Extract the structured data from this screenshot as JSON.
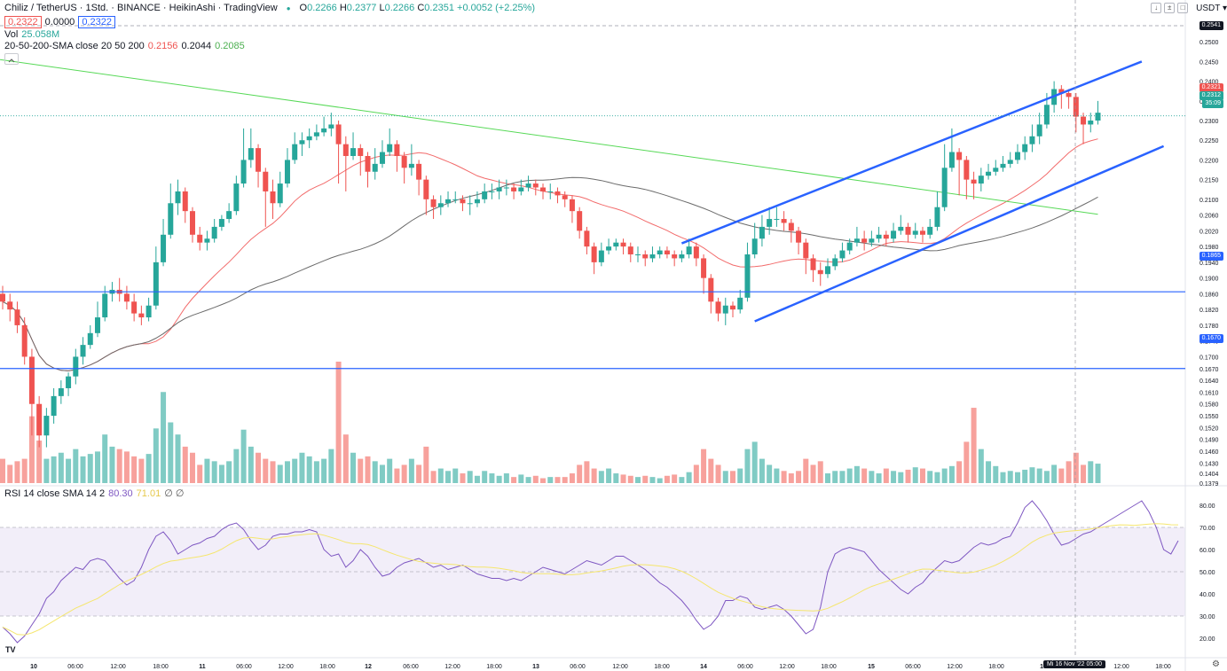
{
  "header": {
    "symbol": "Chiliz / TetherUS · 1Std. · BINANCE · HeikinAshi · TradingView",
    "ohlc": [
      {
        "k": "O",
        "v": "0.2266"
      },
      {
        "k": "H",
        "v": "0.2377"
      },
      {
        "k": "L",
        "v": "0.2266"
      },
      {
        "k": "C",
        "v": "0.2351"
      }
    ],
    "change": "+0.0052 (+2.25%)",
    "bid": "0.2322",
    "spread": "0.0000",
    "ask": "0.2322",
    "vol_label": "Vol",
    "vol_value": "25.058M",
    "sma_label": "20-50-200-SMA close 20 50 200",
    "sma20": "0.2156",
    "sma50": "0.2044",
    "sma200": "0.2085",
    "currency": "USDT",
    "buttons": [
      "↓",
      "±",
      "□"
    ]
  },
  "rsi": {
    "label": "RSI 14 close SMA 14 2",
    "value": "80.30",
    "sma": "71.01",
    "extra": "∅ ∅"
  },
  "colors": {
    "up": "#26a69a",
    "down": "#ef5350",
    "up_vol": "#80cbc4",
    "down_vol": "#f7a19c",
    "sma20": "#f26b6b",
    "sma50": "#6b6b6b",
    "sma200": "#57d957",
    "blue": "#2962ff",
    "rsi": "#7e57c2",
    "rsi_sma": "#f5e66e"
  },
  "price_axis": {
    "ticks": [
      "0.2500",
      "0.2450",
      "0.2400",
      "0.2350",
      "0.2300",
      "0.2250",
      "0.2200",
      "0.2150",
      "0.2100",
      "0.2060",
      "0.2020",
      "0.1980",
      "0.1940",
      "0.1900",
      "0.1860",
      "0.1820",
      "0.1780",
      "0.1740",
      "0.1700",
      "0.1670",
      "0.1640",
      "0.1610",
      "0.1580",
      "0.1550",
      "0.1520",
      "0.1490",
      "0.1460",
      "0.1430",
      "0.1404",
      "0.1379"
    ],
    "crosshair_tag": "0.2541",
    "price_tags": [
      "0.2321",
      "0.2312",
      "35:09"
    ],
    "hline_tags": [
      "0.1865",
      "0.1670"
    ]
  },
  "rsi_axis": {
    "ticks": [
      "80.00",
      "70.00",
      "60.00",
      "50.00",
      "40.00",
      "30.00",
      "20.00"
    ]
  },
  "time_axis": {
    "labels": [
      "10",
      "06:00",
      "12:00",
      "18:00",
      "11",
      "06:00",
      "12:00",
      "18:00",
      "12",
      "06:00",
      "12:00",
      "18:00",
      "13",
      "06:00",
      "12:00",
      "18:00",
      "14",
      "06:00",
      "12:00",
      "18:00",
      "15",
      "06:00",
      "12:00",
      "18:00",
      "16",
      "12:00",
      "18:00"
    ],
    "crosshair_label": "Mi 16 Nov '22  05:00"
  },
  "chart_data": {
    "type": "candlestick",
    "symbol": "CHZUSDT",
    "price_axis_range": [
      0.1379,
      0.2541
    ],
    "horizontal_levels": [
      0.1865,
      0.167
    ],
    "channel": {
      "upper": [
        [
          0.1988,
          0.245
        ]
      ],
      "lower": [
        [
          0.179,
          0.2235
        ]
      ]
    },
    "candles": [
      [
        0.186,
        0.184,
        0.188,
        0.182
      ],
      [
        0.184,
        0.182,
        0.186,
        0.179
      ],
      [
        0.182,
        0.178,
        0.184,
        0.176
      ],
      [
        0.178,
        0.17,
        0.18,
        0.168
      ],
      [
        0.17,
        0.158,
        0.172,
        0.15
      ],
      [
        0.158,
        0.15,
        0.16,
        0.147
      ],
      [
        0.15,
        0.155,
        0.157,
        0.147
      ],
      [
        0.155,
        0.16,
        0.162,
        0.153
      ],
      [
        0.16,
        0.162,
        0.164,
        0.158
      ],
      [
        0.162,
        0.165,
        0.166,
        0.16
      ],
      [
        0.165,
        0.17,
        0.172,
        0.163
      ],
      [
        0.17,
        0.173,
        0.175,
        0.168
      ],
      [
        0.173,
        0.176,
        0.178,
        0.172
      ],
      [
        0.176,
        0.18,
        0.184,
        0.175
      ],
      [
        0.18,
        0.186,
        0.188,
        0.179
      ],
      [
        0.186,
        0.187,
        0.189,
        0.184
      ],
      [
        0.187,
        0.186,
        0.19,
        0.184
      ],
      [
        0.186,
        0.184,
        0.188,
        0.182
      ],
      [
        0.184,
        0.181,
        0.186,
        0.179
      ],
      [
        0.181,
        0.18,
        0.183,
        0.178
      ],
      [
        0.18,
        0.183,
        0.185,
        0.179
      ],
      [
        0.183,
        0.194,
        0.198,
        0.182
      ],
      [
        0.194,
        0.201,
        0.205,
        0.193
      ],
      [
        0.201,
        0.209,
        0.214,
        0.2
      ],
      [
        0.209,
        0.212,
        0.215,
        0.206
      ],
      [
        0.212,
        0.207,
        0.213,
        0.204
      ],
      [
        0.207,
        0.201,
        0.208,
        0.199
      ],
      [
        0.201,
        0.199,
        0.203,
        0.197
      ],
      [
        0.199,
        0.2,
        0.202,
        0.197
      ],
      [
        0.2,
        0.203,
        0.205,
        0.199
      ],
      [
        0.203,
        0.205,
        0.206,
        0.202
      ],
      [
        0.205,
        0.207,
        0.209,
        0.204
      ],
      [
        0.207,
        0.214,
        0.216,
        0.206
      ],
      [
        0.214,
        0.22,
        0.228,
        0.213
      ],
      [
        0.22,
        0.223,
        0.228,
        0.218
      ],
      [
        0.223,
        0.217,
        0.224,
        0.213
      ],
      [
        0.217,
        0.212,
        0.218,
        0.203
      ],
      [
        0.212,
        0.209,
        0.215,
        0.205
      ],
      [
        0.209,
        0.214,
        0.217,
        0.208
      ],
      [
        0.214,
        0.22,
        0.223,
        0.213
      ],
      [
        0.22,
        0.224,
        0.227,
        0.219
      ],
      [
        0.224,
        0.225,
        0.227,
        0.221
      ],
      [
        0.225,
        0.226,
        0.228,
        0.223
      ],
      [
        0.226,
        0.227,
        0.229,
        0.225
      ],
      [
        0.227,
        0.228,
        0.231,
        0.226
      ],
      [
        0.228,
        0.229,
        0.232,
        0.226
      ],
      [
        0.229,
        0.224,
        0.23,
        0.214
      ],
      [
        0.224,
        0.221,
        0.226,
        0.212
      ],
      [
        0.221,
        0.223,
        0.227,
        0.22
      ],
      [
        0.223,
        0.221,
        0.224,
        0.216
      ],
      [
        0.221,
        0.217,
        0.222,
        0.213
      ],
      [
        0.217,
        0.219,
        0.223,
        0.215
      ],
      [
        0.219,
        0.222,
        0.225,
        0.218
      ],
      [
        0.222,
        0.224,
        0.228,
        0.221
      ],
      [
        0.224,
        0.221,
        0.225,
        0.217
      ],
      [
        0.221,
        0.218,
        0.222,
        0.214
      ],
      [
        0.218,
        0.219,
        0.224,
        0.216
      ],
      [
        0.219,
        0.215,
        0.22,
        0.211
      ],
      [
        0.215,
        0.21,
        0.216,
        0.206
      ],
      [
        0.21,
        0.208,
        0.211,
        0.205
      ],
      [
        0.208,
        0.209,
        0.211,
        0.206
      ],
      [
        0.209,
        0.21,
        0.212,
        0.208
      ],
      [
        0.21,
        0.21,
        0.212,
        0.209
      ],
      [
        0.21,
        0.209,
        0.211,
        0.207
      ],
      [
        0.209,
        0.209,
        0.211,
        0.206
      ],
      [
        0.209,
        0.21,
        0.212,
        0.208
      ],
      [
        0.21,
        0.212,
        0.214,
        0.209
      ],
      [
        0.212,
        0.212,
        0.214,
        0.21
      ],
      [
        0.212,
        0.213,
        0.215,
        0.21
      ],
      [
        0.213,
        0.213,
        0.215,
        0.211
      ],
      [
        0.213,
        0.212,
        0.214,
        0.21
      ],
      [
        0.212,
        0.213,
        0.215,
        0.211
      ],
      [
        0.213,
        0.214,
        0.216,
        0.212
      ],
      [
        0.214,
        0.213,
        0.215,
        0.211
      ],
      [
        0.213,
        0.212,
        0.214,
        0.21
      ],
      [
        0.212,
        0.212,
        0.214,
        0.21
      ],
      [
        0.212,
        0.211,
        0.213,
        0.209
      ],
      [
        0.211,
        0.21,
        0.212,
        0.208
      ],
      [
        0.21,
        0.207,
        0.211,
        0.204
      ],
      [
        0.207,
        0.202,
        0.208,
        0.2
      ],
      [
        0.202,
        0.198,
        0.203,
        0.196
      ],
      [
        0.198,
        0.194,
        0.199,
        0.191
      ],
      [
        0.194,
        0.197,
        0.199,
        0.193
      ],
      [
        0.197,
        0.198,
        0.2,
        0.196
      ],
      [
        0.198,
        0.199,
        0.2,
        0.197
      ],
      [
        0.199,
        0.198,
        0.2,
        0.196
      ],
      [
        0.198,
        0.196,
        0.199,
        0.194
      ],
      [
        0.196,
        0.196,
        0.198,
        0.194
      ],
      [
        0.196,
        0.195,
        0.197,
        0.193
      ],
      [
        0.195,
        0.196,
        0.198,
        0.194
      ],
      [
        0.196,
        0.197,
        0.198,
        0.195
      ],
      [
        0.197,
        0.196,
        0.198,
        0.195
      ],
      [
        0.196,
        0.195,
        0.197,
        0.193
      ],
      [
        0.195,
        0.196,
        0.197,
        0.194
      ],
      [
        0.196,
        0.198,
        0.2,
        0.195
      ],
      [
        0.198,
        0.195,
        0.199,
        0.193
      ],
      [
        0.195,
        0.19,
        0.196,
        0.186
      ],
      [
        0.19,
        0.184,
        0.191,
        0.181
      ],
      [
        0.184,
        0.181,
        0.185,
        0.179
      ],
      [
        0.181,
        0.183,
        0.185,
        0.178
      ],
      [
        0.183,
        0.182,
        0.184,
        0.18
      ],
      [
        0.182,
        0.185,
        0.187,
        0.181
      ],
      [
        0.185,
        0.196,
        0.199,
        0.184
      ],
      [
        0.196,
        0.2,
        0.204,
        0.195
      ],
      [
        0.2,
        0.203,
        0.206,
        0.198
      ],
      [
        0.203,
        0.205,
        0.208,
        0.201
      ],
      [
        0.205,
        0.205,
        0.208,
        0.203
      ],
      [
        0.205,
        0.204,
        0.207,
        0.202
      ],
      [
        0.204,
        0.202,
        0.205,
        0.199
      ],
      [
        0.202,
        0.199,
        0.203,
        0.196
      ],
      [
        0.199,
        0.195,
        0.2,
        0.191
      ],
      [
        0.195,
        0.192,
        0.196,
        0.189
      ],
      [
        0.192,
        0.191,
        0.194,
        0.188
      ],
      [
        0.191,
        0.193,
        0.195,
        0.19
      ],
      [
        0.193,
        0.195,
        0.196,
        0.192
      ],
      [
        0.195,
        0.197,
        0.199,
        0.194
      ],
      [
        0.197,
        0.199,
        0.2,
        0.196
      ],
      [
        0.199,
        0.2,
        0.203,
        0.198
      ],
      [
        0.2,
        0.199,
        0.202,
        0.197
      ],
      [
        0.199,
        0.2,
        0.202,
        0.198
      ],
      [
        0.2,
        0.201,
        0.203,
        0.199
      ],
      [
        0.201,
        0.2,
        0.202,
        0.198
      ],
      [
        0.2,
        0.202,
        0.204,
        0.199
      ],
      [
        0.202,
        0.203,
        0.206,
        0.201
      ],
      [
        0.203,
        0.201,
        0.204,
        0.199
      ],
      [
        0.201,
        0.202,
        0.204,
        0.2
      ],
      [
        0.202,
        0.201,
        0.203,
        0.199
      ],
      [
        0.201,
        0.203,
        0.205,
        0.2
      ],
      [
        0.203,
        0.208,
        0.212,
        0.202
      ],
      [
        0.208,
        0.218,
        0.224,
        0.207
      ],
      [
        0.218,
        0.222,
        0.228,
        0.217
      ],
      [
        0.222,
        0.22,
        0.223,
        0.211
      ],
      [
        0.22,
        0.215,
        0.221,
        0.21
      ],
      [
        0.215,
        0.214,
        0.217,
        0.21
      ],
      [
        0.214,
        0.216,
        0.218,
        0.212
      ],
      [
        0.216,
        0.217,
        0.219,
        0.215
      ],
      [
        0.217,
        0.218,
        0.22,
        0.216
      ],
      [
        0.218,
        0.219,
        0.221,
        0.217
      ],
      [
        0.219,
        0.22,
        0.222,
        0.218
      ],
      [
        0.22,
        0.222,
        0.224,
        0.219
      ],
      [
        0.222,
        0.224,
        0.226,
        0.22
      ],
      [
        0.224,
        0.226,
        0.229,
        0.222
      ],
      [
        0.226,
        0.229,
        0.232,
        0.224
      ],
      [
        0.229,
        0.234,
        0.237,
        0.228
      ],
      [
        0.234,
        0.238,
        0.24,
        0.232
      ],
      [
        0.238,
        0.237,
        0.239,
        0.233
      ],
      [
        0.237,
        0.236,
        0.238,
        0.233
      ],
      [
        0.236,
        0.231,
        0.237,
        0.227
      ],
      [
        0.231,
        0.229,
        0.232,
        0.224
      ],
      [
        0.229,
        0.23,
        0.232,
        0.227
      ],
      [
        0.23,
        0.232,
        0.235,
        0.229
      ]
    ],
    "volume": [
      0.2,
      0.15,
      0.18,
      0.2,
      0.55,
      0.35,
      0.2,
      0.22,
      0.25,
      0.2,
      0.28,
      0.22,
      0.24,
      0.26,
      0.4,
      0.3,
      0.28,
      0.26,
      0.22,
      0.2,
      0.24,
      0.45,
      0.75,
      0.5,
      0.4,
      0.3,
      0.25,
      0.15,
      0.2,
      0.18,
      0.15,
      0.18,
      0.28,
      0.44,
      0.3,
      0.25,
      0.2,
      0.18,
      0.15,
      0.18,
      0.2,
      0.25,
      0.22,
      0.18,
      0.2,
      0.28,
      1.0,
      0.4,
      0.25,
      0.2,
      0.22,
      0.18,
      0.15,
      0.2,
      0.12,
      0.15,
      0.2,
      0.15,
      0.3,
      0.1,
      0.12,
      0.1,
      0.12,
      0.08,
      0.1,
      0.06,
      0.1,
      0.08,
      0.06,
      0.08,
      0.05,
      0.07,
      0.05,
      0.06,
      0.04,
      0.05,
      0.05,
      0.05,
      0.08,
      0.15,
      0.18,
      0.12,
      0.1,
      0.12,
      0.08,
      0.07,
      0.06,
      0.05,
      0.06,
      0.05,
      0.04,
      0.06,
      0.07,
      0.05,
      0.09,
      0.15,
      0.28,
      0.2,
      0.15,
      0.1,
      0.1,
      0.12,
      0.28,
      0.34,
      0.2,
      0.15,
      0.12,
      0.1,
      0.08,
      0.1,
      0.2,
      0.15,
      0.18,
      0.08,
      0.1,
      0.1,
      0.12,
      0.14,
      0.12,
      0.1,
      0.08,
      0.12,
      0.1,
      0.09,
      0.11,
      0.13,
      0.12,
      0.1,
      0.09,
      0.12,
      0.14,
      0.18,
      0.34,
      0.62,
      0.28,
      0.18,
      0.14,
      0.09,
      0.1,
      0.09,
      0.11,
      0.13,
      0.12,
      0.1,
      0.15,
      0.12,
      0.18,
      0.25,
      0.15,
      0.18,
      0.16,
      0.35,
      0.18,
      0.2,
      0.06
    ],
    "rsi": [
      25,
      22,
      18,
      21,
      26,
      31,
      38,
      41,
      46,
      49,
      52,
      51,
      55,
      56,
      55,
      51,
      47,
      44,
      46,
      52,
      60,
      66,
      68,
      64,
      58,
      60,
      62,
      63,
      65,
      66,
      69,
      71,
      72,
      69,
      64,
      60,
      62,
      66,
      67,
      67,
      68,
      68,
      69,
      68,
      60,
      57,
      58,
      52,
      55,
      60,
      57,
      52,
      48,
      49,
      52,
      54,
      55,
      56,
      54,
      52,
      53,
      51,
      52,
      53,
      51,
      49,
      48,
      47,
      47,
      46,
      47,
      46,
      48,
      50,
      52,
      51,
      50,
      49,
      51,
      53,
      55,
      54,
      53,
      55,
      57,
      57,
      55,
      53,
      51,
      48,
      45,
      43,
      40,
      37,
      33,
      28,
      24,
      26,
      30,
      37,
      37,
      39,
      38,
      34,
      33,
      34,
      35,
      33,
      30,
      26,
      22,
      24,
      34,
      50,
      58,
      60,
      61,
      60,
      59,
      55,
      51,
      48,
      45,
      42,
      40,
      43,
      45,
      49,
      52,
      55,
      54,
      55,
      58,
      61,
      63,
      62,
      63,
      65,
      66,
      72,
      79,
      82,
      78,
      73,
      67,
      62,
      63,
      65,
      67,
      68,
      70,
      72,
      74,
      76,
      78,
      80,
      82,
      77,
      70,
      60,
      58,
      64
    ]
  }
}
